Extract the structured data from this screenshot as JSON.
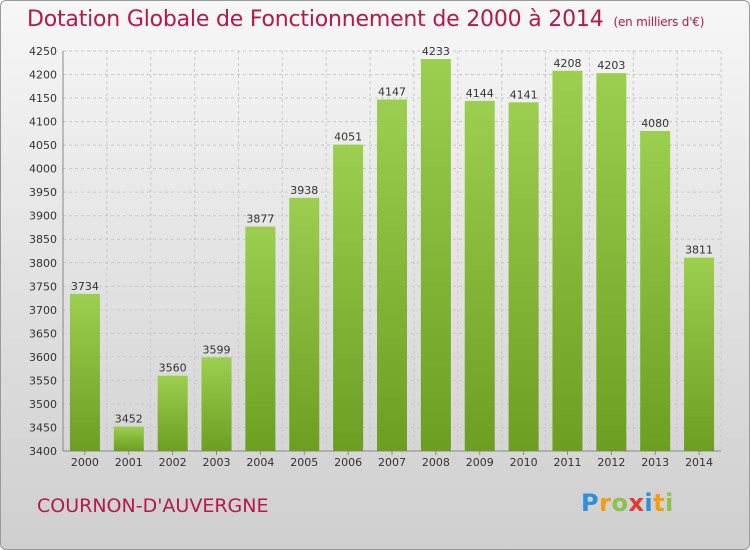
{
  "title": "Dotation Globale de Fonctionnement de 2000 à 2014",
  "unit": "(en milliers d'€)",
  "city": "COURNON-D'AUVERGNE",
  "brand": "Proxiti",
  "colors": {
    "title": "#b5174e",
    "bar_light": "#9ccf4f",
    "bar_dark": "#6c9e22",
    "grid": "#c8c8c8"
  },
  "chart_data": {
    "type": "bar",
    "categories": [
      "2000",
      "2001",
      "2002",
      "2003",
      "2004",
      "2005",
      "2006",
      "2007",
      "2008",
      "2009",
      "2010",
      "2011",
      "2012",
      "2013",
      "2014"
    ],
    "values": [
      3734,
      3452,
      3560,
      3599,
      3877,
      3938,
      4051,
      4147,
      4233,
      4144,
      4141,
      4208,
      4203,
      4080,
      3811
    ],
    "ylim": [
      3400,
      4250
    ],
    "yticks": [
      3400,
      3450,
      3500,
      3550,
      3600,
      3650,
      3700,
      3750,
      3800,
      3850,
      3900,
      3950,
      4000,
      4050,
      4100,
      4150,
      4200,
      4250
    ],
    "grid": true,
    "data_labels": true
  }
}
